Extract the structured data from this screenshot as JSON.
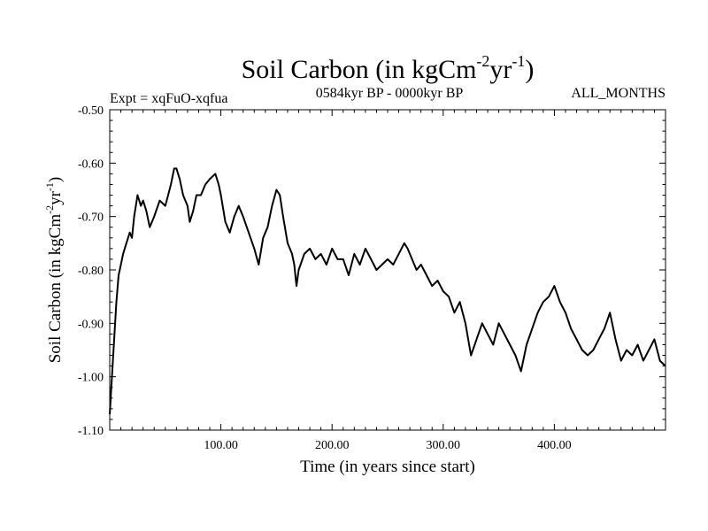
{
  "chart_data": {
    "type": "line",
    "title": "Soil Carbon (in kgCm",
    "title_sup1": "-2",
    "title_mid": "yr",
    "title_sup2": "-1",
    "title_end": ")",
    "subtitle_left": "Expt = xqFuO-xqfua",
    "subtitle_center": "0584kyr BP - 0000kyr BP",
    "subtitle_right": "ALL_MONTHS",
    "xlabel": "Time (in years since start)",
    "ylabel": "Soil Carbon (in kgCm",
    "ylabel_sup1": "-2",
    "ylabel_mid": "yr",
    "ylabel_sup2": "-1",
    "ylabel_end": ")",
    "xlim": [
      0,
      500
    ],
    "ylim": [
      -1.1,
      -0.5
    ],
    "x_ticks": [
      100,
      200,
      300,
      400
    ],
    "x_tick_labels": [
      "100.00",
      "200.00",
      "300.00",
      "400.00"
    ],
    "y_ticks": [
      -0.5,
      -0.6,
      -0.7,
      -0.8,
      -0.9,
      -1.0,
      -1.1
    ],
    "y_tick_labels": [
      "-0.50",
      "-0.60",
      "-0.70",
      "-0.80",
      "-0.90",
      "-1.00",
      "-1.10"
    ],
    "grid": false,
    "series": [
      {
        "name": "Soil Carbon",
        "color": "#000000",
        "x": [
          0,
          2,
          4,
          6,
          8,
          10,
          12,
          15,
          18,
          20,
          22,
          25,
          28,
          30,
          33,
          36,
          40,
          45,
          50,
          55,
          58,
          60,
          63,
          66,
          70,
          72,
          75,
          78,
          82,
          86,
          90,
          95,
          98,
          100,
          104,
          108,
          112,
          116,
          120,
          125,
          130,
          134,
          138,
          142,
          146,
          150,
          153,
          156,
          160,
          164,
          166,
          168,
          170,
          175,
          180,
          185,
          190,
          195,
          200,
          205,
          210,
          215,
          220,
          225,
          230,
          235,
          240,
          245,
          250,
          255,
          260,
          265,
          268,
          272,
          276,
          280,
          285,
          290,
          295,
          300,
          305,
          310,
          315,
          320,
          325,
          330,
          335,
          340,
          345,
          350,
          355,
          360,
          365,
          370,
          375,
          380,
          385,
          390,
          395,
          400,
          405,
          410,
          415,
          420,
          425,
          430,
          435,
          440,
          445,
          450,
          455,
          460,
          465,
          470,
          475,
          480,
          485,
          490,
          495,
          500
        ],
        "values": [
          -1.07,
          -1.0,
          -0.93,
          -0.86,
          -0.81,
          -0.79,
          -0.77,
          -0.75,
          -0.73,
          -0.74,
          -0.7,
          -0.66,
          -0.68,
          -0.67,
          -0.69,
          -0.72,
          -0.7,
          -0.67,
          -0.68,
          -0.64,
          -0.61,
          -0.61,
          -0.63,
          -0.66,
          -0.68,
          -0.71,
          -0.69,
          -0.66,
          -0.66,
          -0.64,
          -0.63,
          -0.62,
          -0.64,
          -0.66,
          -0.71,
          -0.73,
          -0.7,
          -0.68,
          -0.7,
          -0.73,
          -0.76,
          -0.79,
          -0.74,
          -0.72,
          -0.68,
          -0.65,
          -0.66,
          -0.7,
          -0.75,
          -0.77,
          -0.79,
          -0.83,
          -0.8,
          -0.77,
          -0.76,
          -0.78,
          -0.77,
          -0.79,
          -0.76,
          -0.78,
          -0.78,
          -0.81,
          -0.77,
          -0.79,
          -0.76,
          -0.78,
          -0.8,
          -0.79,
          -0.78,
          -0.79,
          -0.77,
          -0.75,
          -0.76,
          -0.78,
          -0.8,
          -0.79,
          -0.81,
          -0.83,
          -0.82,
          -0.84,
          -0.85,
          -0.88,
          -0.86,
          -0.9,
          -0.96,
          -0.93,
          -0.9,
          -0.92,
          -0.94,
          -0.9,
          -0.92,
          -0.94,
          -0.96,
          -0.99,
          -0.94,
          -0.91,
          -0.88,
          -0.86,
          -0.85,
          -0.83,
          -0.86,
          -0.88,
          -0.91,
          -0.93,
          -0.95,
          -0.96,
          -0.95,
          -0.93,
          -0.91,
          -0.88,
          -0.93,
          -0.97,
          -0.95,
          -0.96,
          -0.94,
          -0.97,
          -0.95,
          -0.93,
          -0.97,
          -0.98
        ]
      }
    ]
  }
}
